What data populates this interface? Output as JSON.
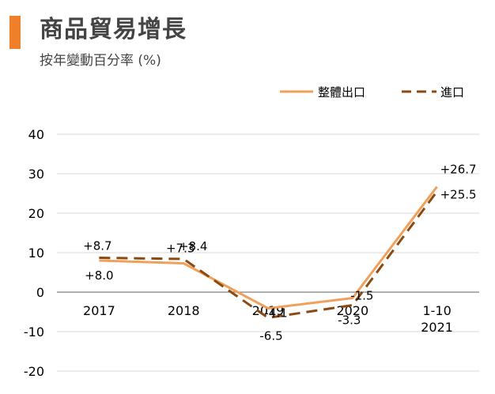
{
  "header": {
    "title": "商品貿易增長",
    "subtitle": "按年變動百分率 (%)"
  },
  "colors": {
    "accent": "#f07f2a",
    "exports": "#f0a05a",
    "imports": "#8b4a12",
    "grid": "#d9d9d9",
    "axis": "#808080"
  },
  "chart_data": {
    "type": "line",
    "categories": [
      [
        "2017"
      ],
      [
        "2018"
      ],
      [
        "2019"
      ],
      [
        "2020"
      ],
      [
        "1-10",
        "2021"
      ]
    ],
    "ylim": [
      -20,
      40
    ],
    "yticks": [
      40,
      30,
      20,
      10,
      0,
      -10,
      -20
    ],
    "grid": true,
    "legend": "top-right",
    "series": [
      {
        "name": "整體出口",
        "style": "solid",
        "values": [
          8.0,
          7.3,
          -4.1,
          -1.5,
          26.7
        ],
        "labels": [
          "+8.0",
          "+7.3",
          "-4.1",
          "-1.5",
          "+26.7"
        ]
      },
      {
        "name": "進口",
        "style": "dashed",
        "values": [
          8.7,
          8.4,
          -6.5,
          -3.3,
          25.5
        ],
        "labels": [
          "+8.7",
          "+8.4",
          "-6.5",
          "-3.3",
          "+25.5"
        ]
      }
    ]
  }
}
